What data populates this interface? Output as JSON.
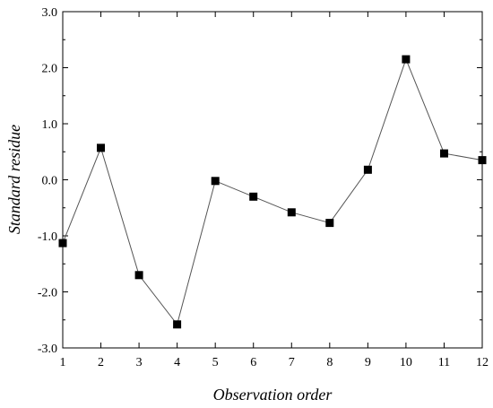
{
  "chart_data": {
    "type": "line",
    "title": "",
    "xlabel": "Observation order",
    "ylabel": "Standard residue",
    "x": [
      1,
      2,
      3,
      4,
      5,
      6,
      7,
      8,
      9,
      10,
      11,
      12
    ],
    "series": [
      {
        "values": [
          -1.13,
          0.57,
          -1.7,
          -2.58,
          -0.02,
          -0.3,
          -0.58,
          -0.77,
          0.18,
          2.15,
          0.47,
          0.35
        ],
        "marker": "square",
        "color": "#000000",
        "line_color": "#555555"
      }
    ],
    "xlim": [
      1,
      12
    ],
    "ylim": [
      -3.0,
      3.0
    ],
    "xticks": [
      1,
      2,
      3,
      4,
      5,
      6,
      7,
      8,
      9,
      10,
      11,
      12
    ],
    "xtick_labels": [
      "1",
      "2",
      "3",
      "4",
      "5",
      "6",
      "7",
      "8",
      "9",
      "10",
      "11",
      "12"
    ],
    "yticks": [
      -3.0,
      -2.0,
      -1.0,
      0.0,
      1.0,
      2.0,
      3.0
    ],
    "ytick_labels": [
      "-3.0",
      "-2.0",
      "-1.0",
      "0.0",
      "1.0",
      "2.0",
      "3.0"
    ],
    "grid": false,
    "legend": "none"
  }
}
